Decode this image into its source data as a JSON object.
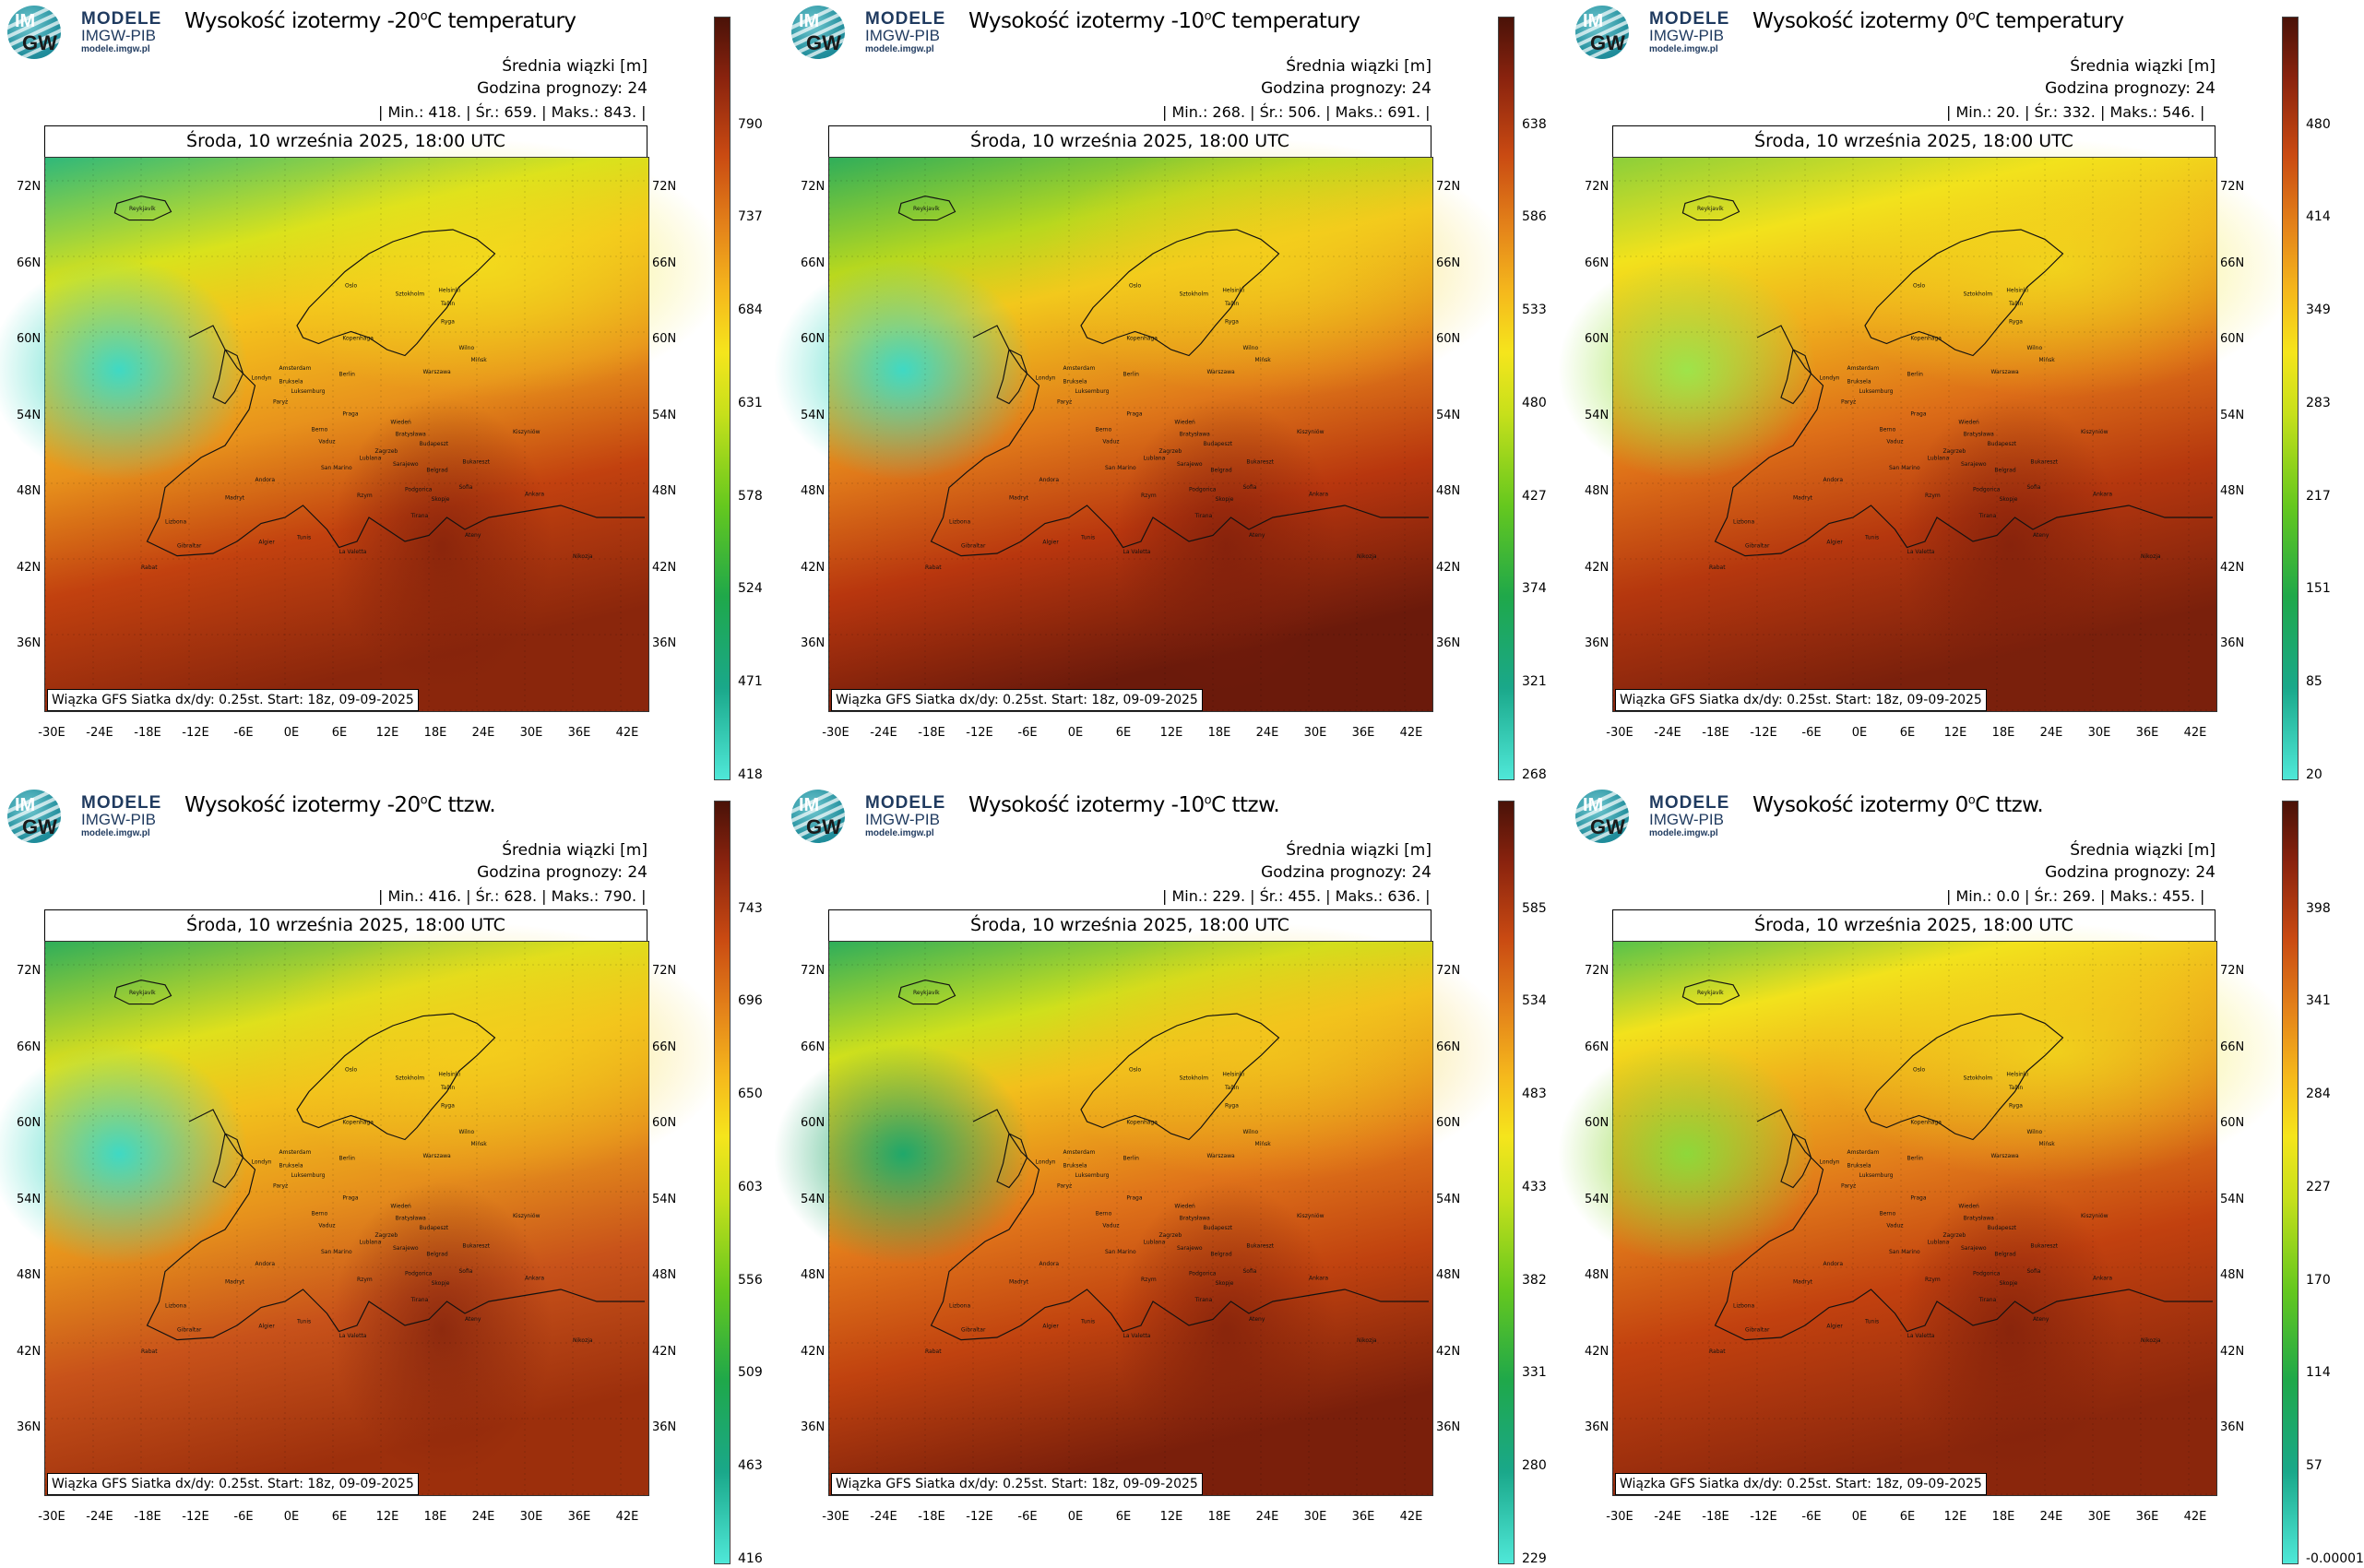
{
  "brand": {
    "line1": "MODELE",
    "line2": "IMGW-PIB",
    "url": "modele.imgw.pl",
    "logo_top": "IM",
    "logo_bottom": "GW"
  },
  "common": {
    "mean_label": "Średnia wiązki [m]",
    "forecast_hour": "Godzina prognozy: 24",
    "date": "Środa, 10 września 2025, 18:00 UTC",
    "footer": "Wiązka GFS Siatka dx/dy: 0.25st. Start: 18z, 09-09-2025",
    "lat_labels": [
      "72N",
      "66N",
      "60N",
      "54N",
      "48N",
      "42N",
      "36N"
    ],
    "lon_labels": [
      "-30E",
      "-24E",
      "-18E",
      "-12E",
      "-6E",
      "0E",
      "6E",
      "12E",
      "18E",
      "24E",
      "30E",
      "36E",
      "42E"
    ],
    "cities": [
      "Reykjavík",
      "Oslo",
      "Sztokholm",
      "Helsinki",
      "Tallin",
      "Ryga",
      "Kopenhaga",
      "Wilno",
      "Mińsk",
      "Amsterdam",
      "Berlin",
      "Londyn",
      "Bruksela",
      "Luksemburg",
      "Paryż",
      "Warszawa",
      "Praga",
      "Wiedeń",
      "Bratysława",
      "Budapeszt",
      "Kiszyniów",
      "Berno",
      "Vaduz",
      "Zagrzeb",
      "Lublana",
      "San Marino",
      "Sarajewo",
      "Belgrad",
      "Bukareszt",
      "Podgorica",
      "Skopje",
      "Sofia",
      "Andora",
      "Madryt",
      "Rzym",
      "Tirana",
      "Ankara",
      "Lizbona",
      "Gibraltar",
      "Algier",
      "Tunis",
      "La Valetta",
      "Rabat",
      "Ateny",
      "Nikozja"
    ]
  },
  "panels": [
    {
      "title": "Wysokość izotermy -20",
      "title_sup": "o",
      "title_tail": "C temperatury",
      "min": "418.",
      "mean": "659.",
      "max": "843.",
      "colorbar": [
        "790",
        "737",
        "684",
        "631",
        "578",
        "524",
        "471",
        "418"
      ],
      "variant": 0
    },
    {
      "title": "Wysokość izotermy -10",
      "title_sup": "o",
      "title_tail": "C temperatury",
      "min": "268.",
      "mean": "506.",
      "max": "691.",
      "colorbar": [
        "638",
        "586",
        "533",
        "480",
        "427",
        "374",
        "321",
        "268"
      ],
      "variant": 1
    },
    {
      "title": "Wysokość izotermy 0",
      "title_sup": "o",
      "title_tail": "C temperatury",
      "min": "20.",
      "mean": "332.",
      "max": "546.",
      "colorbar": [
        "480",
        "414",
        "349",
        "283",
        "217",
        "151",
        "85",
        "20"
      ],
      "variant": 2
    },
    {
      "title": "Wysokość izotermy -20",
      "title_sup": "o",
      "title_tail": "C ttzw.",
      "min": "416.",
      "mean": "628.",
      "max": "790.",
      "colorbar": [
        "743",
        "696",
        "650",
        "603",
        "556",
        "509",
        "463",
        "416"
      ],
      "variant": 3
    },
    {
      "title": "Wysokość izotermy -10",
      "title_sup": "o",
      "title_tail": "C ttzw.",
      "min": "229.",
      "mean": "455.",
      "max": "636.",
      "colorbar": [
        "585",
        "534",
        "483",
        "433",
        "382",
        "331",
        "280",
        "229"
      ],
      "variant": 4
    },
    {
      "title": "Wysokość izotermy 0",
      "title_sup": "o",
      "title_tail": "C ttzw.",
      "min": "0.0",
      "mean": "269.",
      "max": "455.",
      "colorbar": [
        "398",
        "341",
        "284",
        "227",
        "170",
        "114",
        "57",
        "-0.00001"
      ],
      "variant": 5
    }
  ],
  "colors": {
    "cold": "#3fd9c4",
    "green": "#2fae5a",
    "yellow": "#f2e21c",
    "orange": "#e8921c",
    "red": "#c2410f",
    "dark": "#6b1a0b"
  }
}
